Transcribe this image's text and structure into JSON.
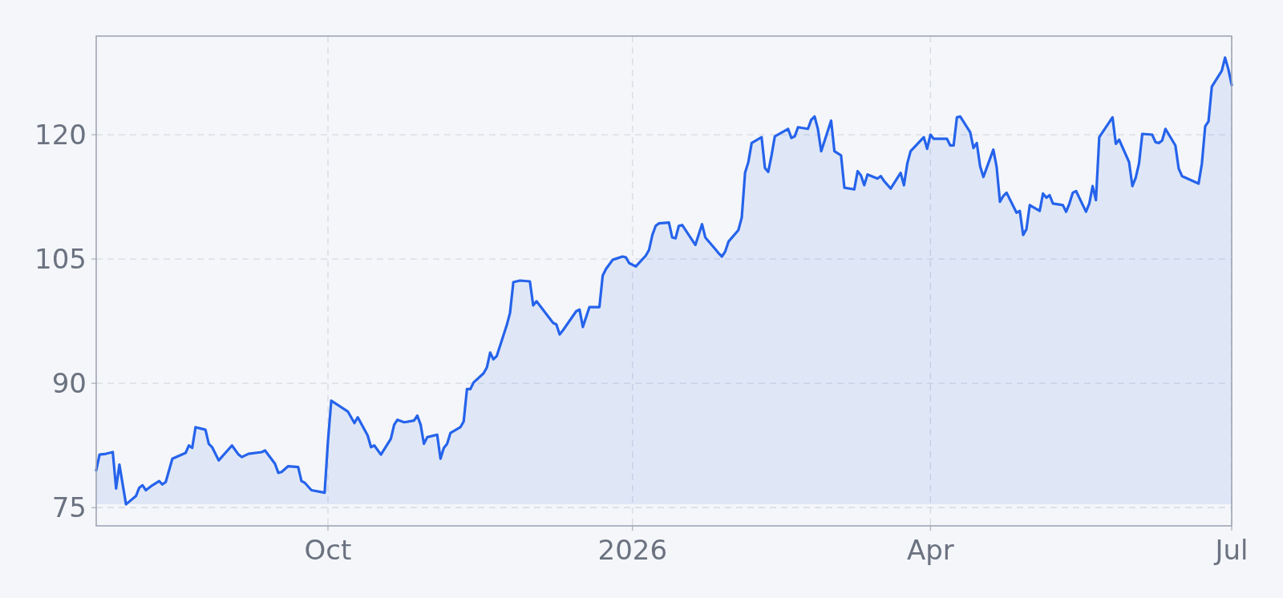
{
  "chart_data": {
    "type": "area",
    "x": [
      "2025-07-23",
      "2025-07-24",
      "2025-07-26",
      "2025-07-28",
      "2025-07-29",
      "2025-07-30",
      "2025-08-01",
      "2025-08-04",
      "2025-08-05",
      "2025-08-06",
      "2025-08-07",
      "2025-08-09",
      "2025-08-11",
      "2025-08-12",
      "2025-08-13",
      "2025-08-15",
      "2025-08-19",
      "2025-08-20",
      "2025-08-21",
      "2025-08-22",
      "2025-08-25",
      "2025-08-26",
      "2025-08-27",
      "2025-08-29",
      "2025-09-02",
      "2025-09-04",
      "2025-09-05",
      "2025-09-07",
      "2025-09-11",
      "2025-09-12",
      "2025-09-15",
      "2025-09-16",
      "2025-09-17",
      "2025-09-19",
      "2025-09-22",
      "2025-09-23",
      "2025-09-24",
      "2025-09-26",
      "2025-09-30",
      "2025-10-01",
      "2025-10-02",
      "2025-10-07",
      "2025-10-08",
      "2025-10-09",
      "2025-10-10",
      "2025-10-13",
      "2025-10-14",
      "2025-10-15",
      "2025-10-17",
      "2025-10-20",
      "2025-10-21",
      "2025-10-22",
      "2025-10-24",
      "2025-10-27",
      "2025-10-28",
      "2025-10-29",
      "2025-10-30",
      "2025-10-31",
      "2025-11-03",
      "2025-11-04",
      "2025-11-05",
      "2025-11-06",
      "2025-11-07",
      "2025-11-10",
      "2025-11-11",
      "2025-11-12",
      "2025-11-13",
      "2025-11-14",
      "2025-11-17",
      "2025-11-18",
      "2025-11-19",
      "2025-11-20",
      "2025-11-21",
      "2025-11-24",
      "2025-11-25",
      "2025-11-26",
      "2025-11-28",
      "2025-12-01",
      "2025-12-02",
      "2025-12-03",
      "2025-12-08",
      "2025-12-09",
      "2025-12-10",
      "2025-12-11",
      "2025-12-15",
      "2025-12-16",
      "2025-12-17",
      "2025-12-19",
      "2025-12-22",
      "2025-12-23",
      "2025-12-24",
      "2025-12-26",
      "2025-12-29",
      "2025-12-30",
      "2025-12-31",
      "2026-01-02",
      "2026-01-05",
      "2026-01-06",
      "2026-01-07",
      "2026-01-08",
      "2026-01-09",
      "2026-01-12",
      "2026-01-13",
      "2026-01-14",
      "2026-01-15",
      "2026-01-16",
      "2026-01-20",
      "2026-01-22",
      "2026-01-23",
      "2026-01-26",
      "2026-01-27",
      "2026-01-28",
      "2026-01-29",
      "2026-01-30",
      "2026-02-02",
      "2026-02-03",
      "2026-02-04",
      "2026-02-05",
      "2026-02-06",
      "2026-02-09",
      "2026-02-10",
      "2026-02-11",
      "2026-02-12",
      "2026-02-13",
      "2026-02-17",
      "2026-02-18",
      "2026-02-19",
      "2026-02-20",
      "2026-02-23",
      "2026-02-24",
      "2026-02-25",
      "2026-02-26",
      "2026-02-27",
      "2026-03-02",
      "2026-03-03",
      "2026-03-05",
      "2026-03-06",
      "2026-03-09",
      "2026-03-10",
      "2026-03-11",
      "2026-03-12",
      "2026-03-13",
      "2026-03-16",
      "2026-03-17",
      "2026-03-18",
      "2026-03-20",
      "2026-03-23",
      "2026-03-24",
      "2026-03-25",
      "2026-03-26",
      "2026-03-30",
      "2026-03-31",
      "2026-04-01",
      "2026-04-02",
      "2026-04-06",
      "2026-04-07",
      "2026-04-08",
      "2026-04-09",
      "2026-04-10",
      "2026-04-13",
      "2026-04-14",
      "2026-04-15",
      "2026-04-16",
      "2026-04-17",
      "2026-04-20",
      "2026-04-21",
      "2026-04-22",
      "2026-04-23",
      "2026-04-24",
      "2026-04-27",
      "2026-04-28",
      "2026-04-29",
      "2026-04-30",
      "2026-05-01",
      "2026-05-04",
      "2026-05-05",
      "2026-05-06",
      "2026-05-07",
      "2026-05-08",
      "2026-05-11",
      "2026-05-12",
      "2026-05-13",
      "2026-05-14",
      "2026-05-15",
      "2026-05-18",
      "2026-05-19",
      "2026-05-20",
      "2026-05-21",
      "2026-05-22",
      "2026-05-26",
      "2026-05-27",
      "2026-05-28",
      "2026-05-31",
      "2026-06-01",
      "2026-06-02",
      "2026-06-03",
      "2026-06-04",
      "2026-06-07",
      "2026-06-08",
      "2026-06-09",
      "2026-06-10",
      "2026-06-11",
      "2026-06-14",
      "2026-06-15",
      "2026-06-16",
      "2026-06-21",
      "2026-06-22",
      "2026-06-23",
      "2026-06-24",
      "2026-06-25",
      "2026-06-28",
      "2026-06-29",
      "2026-06-30",
      "2026-07-01"
    ],
    "series": [
      {
        "color": "#2563eb",
        "values": [
          79.5,
          81.4,
          81.5,
          81.7,
          77.3,
          80.2,
          75.4,
          76.4,
          77.4,
          77.7,
          77.1,
          77.7,
          78.2,
          77.8,
          78.1,
          80.9,
          81.6,
          82.5,
          82.2,
          84.7,
          84.4,
          82.7,
          82.3,
          80.7,
          82.5,
          81.4,
          81.1,
          81.5,
          81.7,
          81.9,
          80.3,
          79.2,
          79.3,
          80.0,
          79.9,
          78.2,
          78.0,
          77.1,
          76.8,
          83.0,
          87.9,
          86.6,
          85.9,
          85.2,
          85.9,
          83.7,
          82.3,
          82.5,
          81.4,
          83.3,
          85.0,
          85.6,
          85.3,
          85.5,
          86.1,
          85.0,
          82.7,
          83.5,
          83.8,
          80.9,
          82.2,
          82.7,
          84.0,
          84.7,
          85.4,
          89.3,
          89.3,
          90.1,
          91.2,
          91.9,
          93.7,
          92.9,
          93.3,
          97.0,
          98.5,
          102.2,
          102.4,
          102.3,
          99.4,
          99.9,
          97.3,
          97.1,
          95.9,
          96.4,
          98.7,
          98.9,
          96.8,
          99.2,
          99.2,
          103.0,
          103.8,
          104.9,
          105.3,
          105.2,
          104.5,
          104.1,
          105.4,
          106.1,
          107.9,
          109.0,
          109.3,
          109.4,
          107.6,
          107.5,
          109.0,
          109.1,
          106.7,
          109.2,
          107.6,
          106.2,
          105.7,
          105.3,
          105.9,
          107.1,
          108.5,
          110.0,
          115.4,
          116.7,
          119.0,
          119.7,
          116.0,
          115.5,
          117.5,
          119.8,
          120.7,
          119.6,
          119.8,
          120.9,
          120.7,
          121.8,
          122.2,
          120.7,
          118.0,
          121.7,
          118.0,
          117.5,
          113.6,
          113.4,
          115.6,
          115.1,
          113.9,
          115.2,
          114.7,
          115.0,
          114.4,
          113.5,
          115.4,
          113.9,
          116.5,
          118.0,
          119.7,
          118.3,
          120.0,
          119.5,
          119.5,
          118.7,
          118.7,
          122.1,
          122.2,
          120.3,
          118.4,
          119.0,
          116.2,
          114.9,
          118.2,
          116.1,
          111.9,
          112.6,
          113.0,
          110.6,
          110.8,
          107.9,
          108.6,
          111.5,
          110.8,
          112.9,
          112.4,
          112.7,
          111.7,
          111.5,
          110.7,
          111.7,
          113.0,
          113.2,
          110.7,
          111.7,
          113.8,
          112.1,
          119.7,
          122.1,
          118.9,
          119.4,
          116.7,
          113.8,
          114.8,
          116.5,
          120.1,
          120.0,
          119.1,
          119.0,
          119.3,
          120.7,
          118.7,
          115.9,
          115.0,
          114.1,
          116.5,
          121.0,
          121.6,
          125.8,
          127.7,
          129.3,
          127.9,
          126.0
        ]
      }
    ],
    "xlim": [
      "2025-07-23",
      "2026-07-01"
    ],
    "xticks": [
      {
        "value": "2025-10-01",
        "label": "Oct"
      },
      {
        "value": "2026-01-01",
        "label": "2026"
      },
      {
        "value": "2026-04-01",
        "label": "Apr"
      },
      {
        "value": "2026-07-01",
        "label": "Jul"
      }
    ],
    "ylim": [
      72.8,
      131.9
    ],
    "yticks": [
      75,
      90,
      105,
      120
    ],
    "grid": true,
    "line_style": "solid"
  }
}
